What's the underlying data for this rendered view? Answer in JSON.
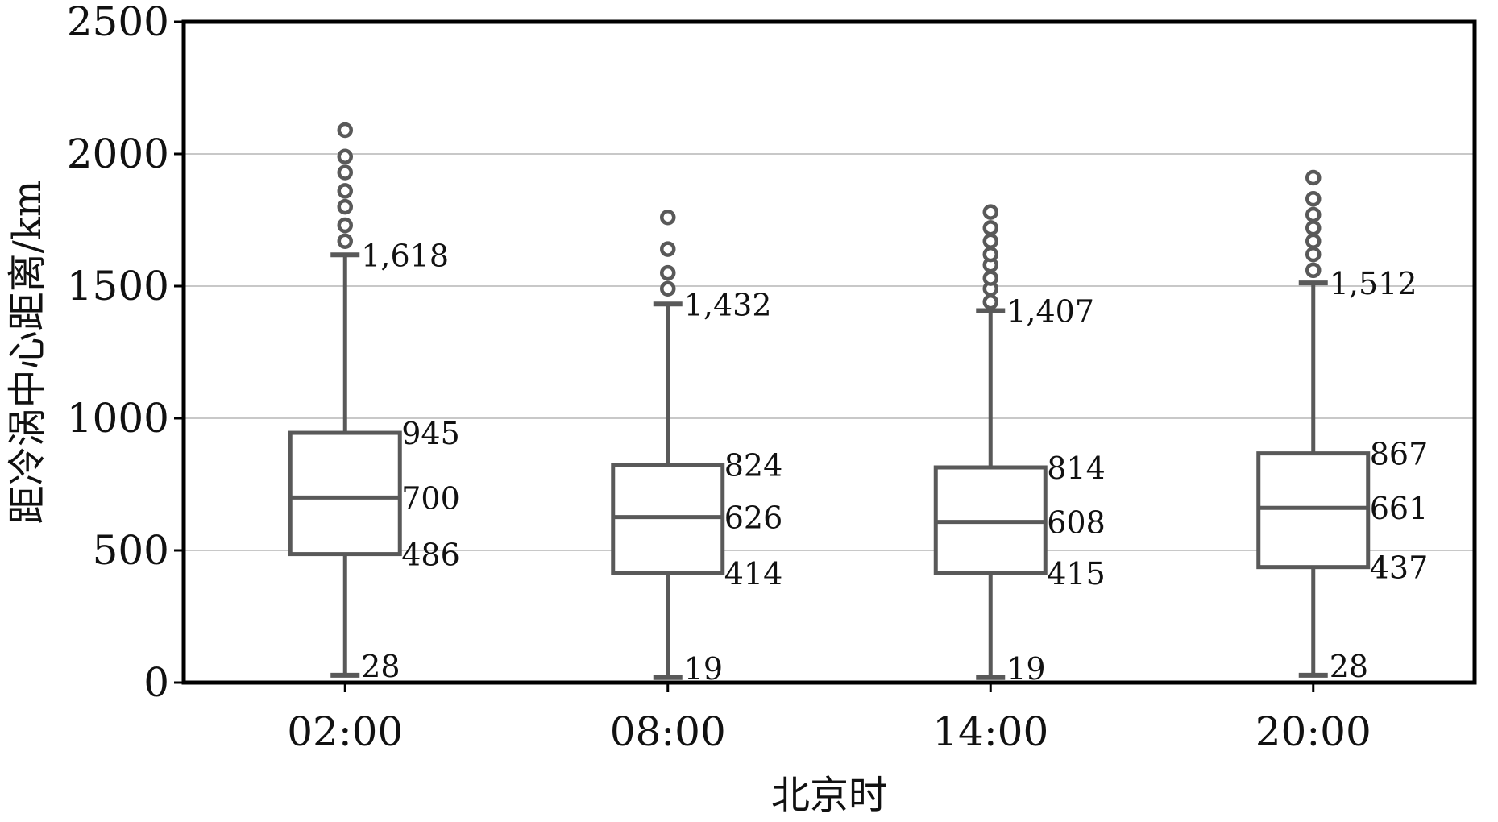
{
  "chart_data": {
    "type": "box",
    "title": "",
    "xlabel": "北京时",
    "ylabel": "距冷涡中心距离/km",
    "ylim": [
      0,
      2500
    ],
    "yticks": [
      "0",
      "500",
      "1000",
      "1500",
      "2000",
      "2500"
    ],
    "grid": "horizontal",
    "categories": [
      "02:00",
      "08:00",
      "14:00",
      "20:00"
    ],
    "boxes": [
      {
        "min": 28,
        "q1": 486,
        "median": 700,
        "q3": 945,
        "max": 1618,
        "labels": {
          "min": "28",
          "q1": "486",
          "median": "700",
          "q3": "945",
          "max": "1,618"
        },
        "outliers": [
          1670,
          1730,
          1800,
          1860,
          1930,
          1990,
          2090
        ]
      },
      {
        "min": 19,
        "q1": 414,
        "median": 626,
        "q3": 824,
        "max": 1432,
        "labels": {
          "min": "19",
          "q1": "414",
          "median": "626",
          "q3": "824",
          "max": "1,432"
        },
        "outliers": [
          1490,
          1550,
          1640,
          1760
        ]
      },
      {
        "min": 19,
        "q1": 415,
        "median": 608,
        "q3": 814,
        "max": 1407,
        "labels": {
          "min": "19",
          "q1": "415",
          "median": "608",
          "q3": "814",
          "max": "1,407"
        },
        "outliers": [
          1440,
          1490,
          1530,
          1580,
          1620,
          1670,
          1720,
          1780
        ]
      },
      {
        "min": 28,
        "q1": 437,
        "median": 661,
        "q3": 867,
        "max": 1512,
        "labels": {
          "min": "28",
          "q1": "437",
          "median": "661",
          "q3": "867",
          "max": "1,512"
        },
        "outliers": [
          1560,
          1620,
          1670,
          1720,
          1770,
          1830,
          1910
        ]
      }
    ],
    "colors": {
      "box": "#595959",
      "grid": "#c8c8c8",
      "frame": "#000000"
    }
  }
}
